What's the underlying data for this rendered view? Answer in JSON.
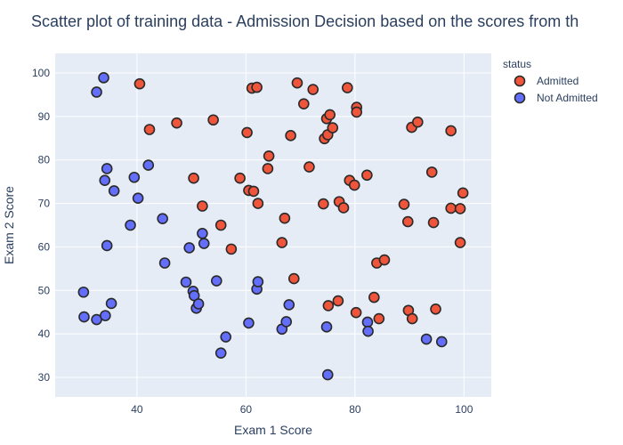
{
  "chart_data": {
    "type": "scatter",
    "title": "Scatter plot of training data - Admission Decision based on the scores from th",
    "xlabel": "Exam 1 Score",
    "ylabel": "Exam 2 Score",
    "xlim": [
      25,
      105
    ],
    "ylim": [
      25.5,
      104.5
    ],
    "xticks": [
      40,
      60,
      80,
      100
    ],
    "yticks": [
      30,
      40,
      50,
      60,
      70,
      80,
      90,
      100
    ],
    "grid": true,
    "legend": {
      "title": "status",
      "placement": "top-right"
    },
    "series": [
      {
        "name": "Admitted",
        "color": "#ef553b",
        "points": [
          [
            40.5,
            97.5
          ],
          [
            42.3,
            87.0
          ],
          [
            47.3,
            88.5
          ],
          [
            50.4,
            75.8
          ],
          [
            52.0,
            69.4
          ],
          [
            54.0,
            89.2
          ],
          [
            55.4,
            65.0
          ],
          [
            57.3,
            59.5
          ],
          [
            58.9,
            75.8
          ],
          [
            60.2,
            86.3
          ],
          [
            60.5,
            73.0
          ],
          [
            61.1,
            96.5
          ],
          [
            61.4,
            72.8
          ],
          [
            62.0,
            96.7
          ],
          [
            62.2,
            70.0
          ],
          [
            64.2,
            80.9
          ],
          [
            64.0,
            78.0
          ],
          [
            66.6,
            61.0
          ],
          [
            67.1,
            66.6
          ],
          [
            68.2,
            85.6
          ],
          [
            68.8,
            52.7
          ],
          [
            69.4,
            97.7
          ],
          [
            70.6,
            92.9
          ],
          [
            71.6,
            78.4
          ],
          [
            72.3,
            96.2
          ],
          [
            74.2,
            69.9
          ],
          [
            74.4,
            84.9
          ],
          [
            74.8,
            89.5
          ],
          [
            75.1,
            46.5
          ],
          [
            75.0,
            85.8
          ],
          [
            75.4,
            90.4
          ],
          [
            75.9,
            87.4
          ],
          [
            76.9,
            47.6
          ],
          [
            77.1,
            70.4
          ],
          [
            77.9,
            69.0
          ],
          [
            78.6,
            96.6
          ],
          [
            79.0,
            75.3
          ],
          [
            79.9,
            74.2
          ],
          [
            80.3,
            92.1
          ],
          [
            80.3,
            91.0
          ],
          [
            80.2,
            44.9
          ],
          [
            82.2,
            76.5
          ],
          [
            83.5,
            48.4
          ],
          [
            84.0,
            56.3
          ],
          [
            84.4,
            43.5
          ],
          [
            85.4,
            57.0
          ],
          [
            89.0,
            69.8
          ],
          [
            89.7,
            65.8
          ],
          [
            89.8,
            45.4
          ],
          [
            90.4,
            87.5
          ],
          [
            90.5,
            43.5
          ],
          [
            91.5,
            88.7
          ],
          [
            94.1,
            77.2
          ],
          [
            94.4,
            65.6
          ],
          [
            94.8,
            45.7
          ],
          [
            97.6,
            86.7
          ],
          [
            97.6,
            68.9
          ],
          [
            99.3,
            68.8
          ],
          [
            99.3,
            61.0
          ],
          [
            99.8,
            72.4
          ]
        ]
      },
      {
        "name": "Not Admitted",
        "color": "#636efa",
        "points": [
          [
            30.2,
            49.6
          ],
          [
            30.3,
            43.9
          ],
          [
            32.6,
            95.6
          ],
          [
            32.6,
            43.3
          ],
          [
            33.9,
            98.9
          ],
          [
            34.1,
            75.3
          ],
          [
            34.5,
            78.0
          ],
          [
            34.5,
            60.3
          ],
          [
            34.2,
            44.2
          ],
          [
            35.3,
            47.0
          ],
          [
            35.8,
            72.9
          ],
          [
            38.8,
            65.0
          ],
          [
            39.5,
            76.0
          ],
          [
            40.2,
            71.2
          ],
          [
            42.1,
            78.8
          ],
          [
            44.7,
            66.5
          ],
          [
            45.1,
            56.3
          ],
          [
            49.0,
            51.9
          ],
          [
            49.6,
            59.8
          ],
          [
            50.3,
            49.8
          ],
          [
            50.5,
            48.8
          ],
          [
            50.9,
            45.9
          ],
          [
            51.3,
            46.9
          ],
          [
            52.0,
            63.1
          ],
          [
            52.3,
            60.8
          ],
          [
            54.6,
            52.2
          ],
          [
            55.4,
            35.6
          ],
          [
            56.3,
            39.3
          ],
          [
            60.5,
            42.5
          ],
          [
            62.0,
            50.3
          ],
          [
            62.2,
            52.0
          ],
          [
            66.6,
            41.1
          ],
          [
            67.4,
            42.8
          ],
          [
            67.9,
            46.7
          ],
          [
            74.8,
            41.6
          ],
          [
            75.0,
            30.6
          ],
          [
            82.3,
            42.7
          ],
          [
            82.4,
            40.6
          ],
          [
            93.1,
            38.8
          ],
          [
            95.9,
            38.2
          ]
        ]
      }
    ]
  }
}
